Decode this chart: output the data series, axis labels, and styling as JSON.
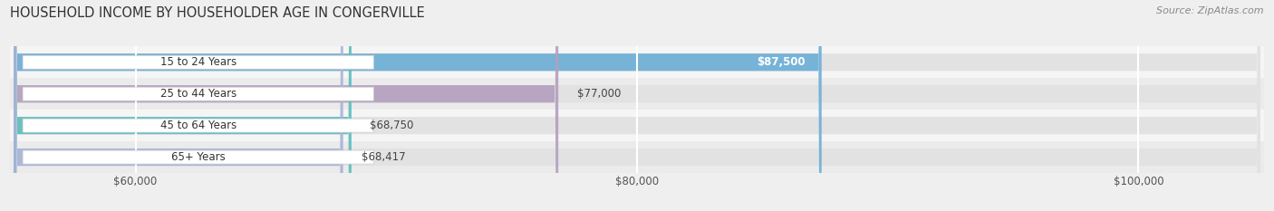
{
  "title": "HOUSEHOLD INCOME BY HOUSEHOLDER AGE IN CONGERVILLE",
  "source": "Source: ZipAtlas.com",
  "categories": [
    "15 to 24 Years",
    "25 to 44 Years",
    "45 to 64 Years",
    "65+ Years"
  ],
  "values": [
    87500,
    77000,
    68750,
    68417
  ],
  "bar_colors": [
    "#6baed6",
    "#b49fbe",
    "#5dbdbc",
    "#a8b3d8"
  ],
  "bar_labels": [
    "$87,500",
    "$77,000",
    "$68,750",
    "$68,417"
  ],
  "label_inside": [
    true,
    false,
    false,
    false
  ],
  "xmin": 55000,
  "xmax": 105000,
  "xticks": [
    60000,
    80000,
    100000
  ],
  "xtick_labels": [
    "$60,000",
    "$80,000",
    "$100,000"
  ],
  "background_color": "#efefef",
  "bar_bg_color": "#e2e2e2",
  "row_bg_colors": [
    "#f5f5f5",
    "#ebebeb",
    "#f5f5f5",
    "#ebebeb"
  ],
  "title_fontsize": 10.5,
  "source_fontsize": 8,
  "label_fontsize": 8.5,
  "tick_fontsize": 8.5,
  "cat_fontsize": 8.5,
  "bar_height": 0.55
}
